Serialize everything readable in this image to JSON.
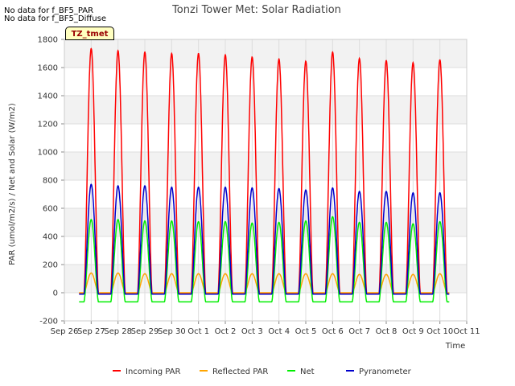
{
  "notes": [
    "No data for f_BF5_PAR",
    "No data for f_BF5_Diffuse"
  ],
  "site_label": "TZ_tmet",
  "chart_data": {
    "type": "line",
    "title": "Tonzi Tower Met: Solar Radiation",
    "xlabel": "Time",
    "ylabel": "PAR (umol/m2/s) / Net and Solar (W/m2)",
    "ylim": [
      -200,
      1800
    ],
    "yticks": [
      -200,
      0,
      200,
      400,
      600,
      800,
      1000,
      1200,
      1400,
      1600,
      1800
    ],
    "xlim": [
      0,
      15
    ],
    "xtick_labels": [
      "Sep 26",
      "Sep 27",
      "Sep 28",
      "Sep 29",
      "Sep 30",
      "Oct 1",
      "Oct 2",
      "Oct 3",
      "Oct 4",
      "Oct 5",
      "Oct 6",
      "Oct 7",
      "Oct 8",
      "Oct 9",
      "Oct 10",
      "Oct 11"
    ],
    "grid": true,
    "legend_position": "bottom",
    "series": [
      {
        "name": "Incoming PAR",
        "color": "#ff0000",
        "daily_peaks": [
          1735,
          1720,
          1710,
          1700,
          1700,
          1690,
          1675,
          1660,
          1645,
          1710,
          1665,
          1650,
          1635,
          1655
        ],
        "night_value": -5
      },
      {
        "name": "Reflected PAR",
        "color": "#ffa500",
        "daily_peaks": [
          140,
          140,
          135,
          135,
          135,
          135,
          135,
          135,
          135,
          135,
          130,
          130,
          130,
          135
        ],
        "night_value": 0
      },
      {
        "name": "Net",
        "color": "#00ee00",
        "daily_peaks": [
          520,
          520,
          510,
          510,
          505,
          505,
          495,
          500,
          510,
          540,
          500,
          500,
          490,
          505
        ],
        "night_value": -65
      },
      {
        "name": "Pyranometer",
        "color": "#0000cc",
        "daily_peaks": [
          770,
          760,
          760,
          750,
          750,
          750,
          745,
          740,
          730,
          745,
          720,
          720,
          710,
          710
        ],
        "night_value": -10
      }
    ],
    "day_centers": [
      1.0,
      2.0,
      3.0,
      4.0,
      5.0,
      6.0,
      7.0,
      8.0,
      9.0,
      10.0,
      11.0,
      12.0,
      13.0,
      14.0
    ],
    "x_end": 14.35
  }
}
